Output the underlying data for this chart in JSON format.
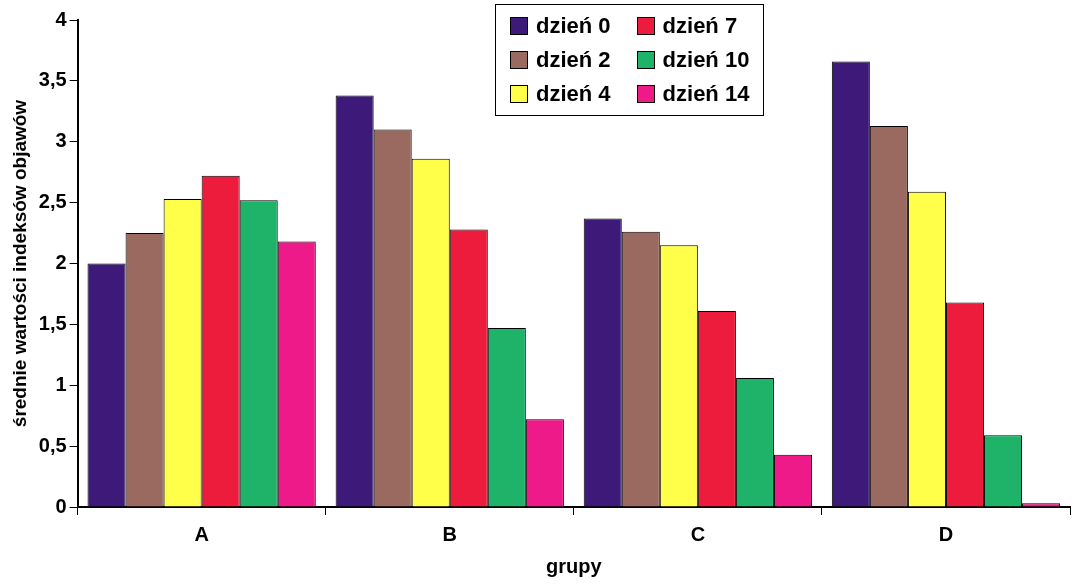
{
  "chart_data": {
    "type": "bar",
    "xlabel": "grupy",
    "ylabel": "średnie wartości indeksów objawów",
    "categories": [
      "A",
      "B",
      "C",
      "D"
    ],
    "series": [
      {
        "name": "dzień 0",
        "color": "#3d1a7a",
        "values": [
          2.0,
          3.38,
          2.37,
          3.66
        ]
      },
      {
        "name": "dzień 2",
        "color": "#9a6a60",
        "values": [
          2.25,
          3.1,
          2.26,
          3.13
        ]
      },
      {
        "name": "dzień 4",
        "color": "#ffff4a",
        "values": [
          2.53,
          2.86,
          2.15,
          2.59
        ]
      },
      {
        "name": "dzień 7",
        "color": "#ee1c3c",
        "values": [
          2.72,
          2.28,
          1.61,
          1.68
        ]
      },
      {
        "name": "dzień 10",
        "color": "#1fb36a",
        "values": [
          2.52,
          1.47,
          1.06,
          0.59
        ]
      },
      {
        "name": "dzień 14",
        "color": "#ee1a8a",
        "values": [
          2.18,
          0.72,
          0.43,
          0.03
        ]
      }
    ],
    "ylim": [
      0,
      4
    ],
    "yticks": [
      0,
      {
        "value": 0.5,
        "label": "0,5"
      },
      1,
      {
        "value": 1.5,
        "label": "1,5"
      },
      2,
      {
        "value": 2.5,
        "label": "2,5"
      },
      3,
      {
        "value": 3.5,
        "label": "3,5"
      },
      4
    ],
    "grid": false,
    "legend": "top"
  }
}
